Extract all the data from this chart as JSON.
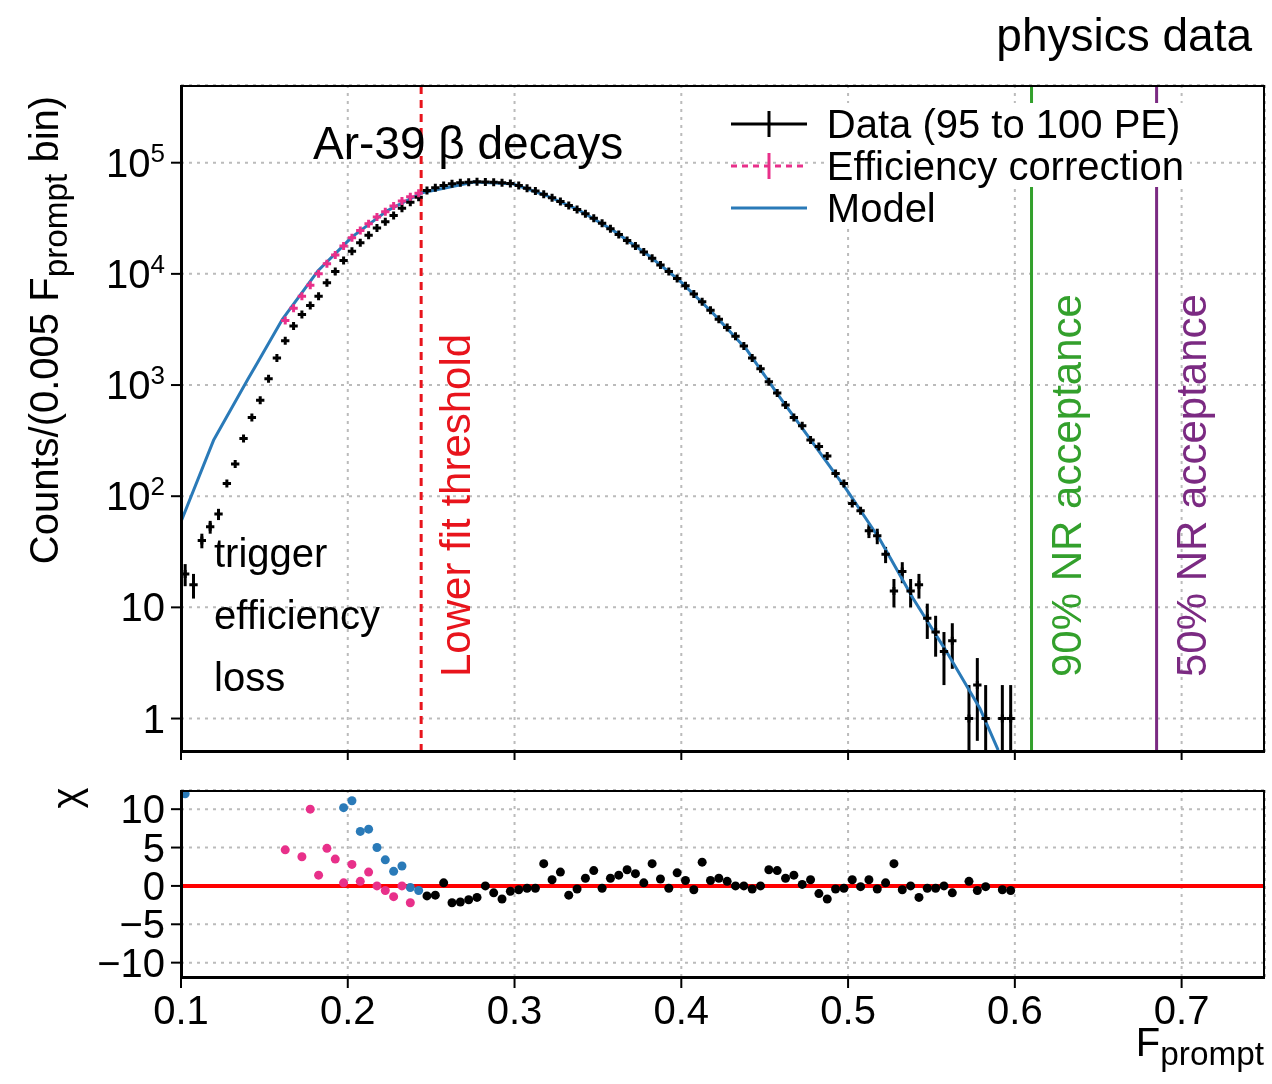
{
  "chart_data": [
    {
      "type": "scatter",
      "title": "physics data",
      "ylabel": "Counts/(0.005 F$_{prompt}$ bin)",
      "log": "y",
      "xlim": [
        0.1,
        0.75
      ],
      "ylim": [
        0.5,
        500000
      ],
      "xticks": [
        0.1,
        0.2,
        0.3,
        0.4,
        0.5,
        0.6,
        0.7
      ],
      "yticks": [
        1,
        10,
        {
          "value": 100,
          "label": "10$^{2}$"
        },
        {
          "value": 1000,
          "label": "10$^{3}$"
        },
        {
          "value": 10000,
          "label": "10$^{4}$"
        },
        {
          "value": 100000,
          "label": "10$^{5}$"
        }
      ],
      "tick_labels": "y",
      "grid": true,
      "legend": "top right",
      "x": [
        0.1025,
        0.1075,
        0.1125,
        0.1175,
        0.1225,
        0.1275,
        0.1325,
        0.1375,
        0.1425,
        0.1475,
        0.1525,
        0.1575,
        0.1625,
        0.1675,
        0.1725,
        0.1775,
        0.1825,
        0.1875,
        0.1925,
        0.1975,
        0.2025,
        0.2075,
        0.2125,
        0.2175,
        0.2225,
        0.2275,
        0.2325,
        0.2375,
        0.2425,
        0.2475,
        0.2525,
        0.2575,
        0.2625,
        0.2675,
        0.2725,
        0.2775,
        0.2825,
        0.2875,
        0.2925,
        0.2975,
        0.3025,
        0.3075,
        0.3125,
        0.3175,
        0.3225,
        0.3275,
        0.3325,
        0.3375,
        0.3425,
        0.3475,
        0.3525,
        0.3575,
        0.3625,
        0.3675,
        0.3725,
        0.3775,
        0.3825,
        0.3875,
        0.3925,
        0.3975,
        0.4025,
        0.4075,
        0.4125,
        0.4175,
        0.4225,
        0.4275,
        0.4325,
        0.4375,
        0.4425,
        0.4475,
        0.4525,
        0.4575,
        0.4625,
        0.4675,
        0.4725,
        0.4775,
        0.4825,
        0.4875,
        0.4925,
        0.4975,
        0.5025,
        0.5075,
        0.5125,
        0.5175,
        0.5225,
        0.5275,
        0.5325,
        0.5375,
        0.5425,
        0.5475,
        0.5525,
        0.5575,
        0.5625,
        0.5675,
        0.5725,
        0.5775,
        0.5825,
        0.5875,
        0.5925,
        0.5975
      ],
      "series": [
        {
          "name": "Data (95 to 100 PE)",
          "color": "#000000",
          "marker": "cross",
          "values": [
            20,
            16,
            40,
            53,
            69,
            130,
            195,
            330,
            510,
            730,
            1140,
            1750,
            2500,
            3400,
            4300,
            5200,
            6300,
            8300,
            10500,
            13200,
            16000,
            19100,
            22200,
            25800,
            29500,
            33500,
            39000,
            44000,
            49000,
            56200,
            59600,
            62400,
            64600,
            66100,
            66800,
            67300,
            67100,
            66800,
            66100,
            64900,
            62400,
            58900,
            55600,
            51900,
            48400,
            44700,
            41200,
            38000,
            34700,
            31600,
            28500,
            25400,
            22600,
            20000,
            17800,
            15700,
            13800,
            12000,
            10500,
            9100,
            7800,
            6600,
            5600,
            4700,
            3900,
            3300,
            2750,
            2250,
            1750,
            1400,
            1070,
            850,
            660,
            510,
            430,
            320,
            280,
            230,
            160,
            130,
            86,
            74,
            49,
            44,
            30,
            14,
            21,
            14,
            16,
            8,
            6,
            4,
            5,
            null,
            1,
            2,
            1,
            null,
            1,
            1
          ],
          "errors": [
            [
              15.5,
              24.5
            ],
            [
              12,
              20
            ],
            [
              34,
              46
            ],
            [
              46,
              60
            ],
            [
              61,
              77
            ],
            null,
            null,
            null,
            null,
            null,
            null,
            null,
            null,
            null,
            null,
            null,
            null,
            null,
            null,
            null,
            null,
            null,
            null,
            null,
            null,
            null,
            null,
            null,
            null,
            null,
            null,
            null,
            null,
            null,
            null,
            null,
            null,
            null,
            null,
            null,
            null,
            null,
            null,
            null,
            null,
            null,
            null,
            null,
            null,
            null,
            null,
            null,
            null,
            null,
            null,
            null,
            null,
            null,
            null,
            null,
            null,
            null,
            null,
            null,
            null,
            null,
            null,
            null,
            null,
            null,
            null,
            null,
            null,
            null,
            null,
            null,
            null,
            null,
            null,
            null,
            null,
            null,
            [
              42,
              56
            ],
            [
              37,
              51
            ],
            [
              25,
              35
            ],
            [
              10,
              18
            ],
            [
              16.5,
              25.5
            ],
            [
              10,
              18
            ],
            [
              12,
              20
            ],
            [
              5.2,
              10.8
            ],
            [
              3.6,
              8.4
            ],
            [
              2,
              6
            ],
            [
              2.8,
              7.2
            ],
            null,
            [
              0.5,
              2
            ],
            [
              0.63,
              3.5
            ],
            [
              0.5,
              2
            ],
            null,
            [
              0.5,
              2
            ],
            [
              0.5,
              2
            ]
          ]
        },
        {
          "name": "Efficiency correction",
          "color": "#e8308a",
          "marker": "cross",
          "x": [
            0.1625,
            0.1675,
            0.1725,
            0.1775,
            0.1825,
            0.1875,
            0.1925,
            0.1975,
            0.2025,
            0.2075,
            0.2125,
            0.2175,
            0.2225,
            0.2275,
            0.2325,
            0.2375,
            0.2425
          ],
          "values": [
            3800,
            4900,
            6300,
            7900,
            10000,
            12300,
            14800,
            17800,
            21100,
            24500,
            28200,
            32400,
            36300,
            40700,
            45200,
            49500,
            53100
          ]
        },
        {
          "name": "Model",
          "color": "#2a7ab8",
          "type": "line",
          "x": [
            0.1,
            0.1195,
            0.14,
            0.161,
            0.182,
            0.2026,
            0.2235,
            0.2445,
            0.2757,
            0.299,
            0.319,
            0.339,
            0.359,
            0.379,
            0.399,
            0.419,
            0.439,
            0.459,
            0.479,
            0.499,
            0.519,
            0.539,
            0.559,
            0.579,
            0.59
          ],
          "values": [
            59,
            318,
            1120,
            3940,
            10600,
            21500,
            36900,
            53700,
            67100,
            64600,
            50700,
            37200,
            24700,
            15200,
            8700,
            4420,
            2100,
            780,
            300,
            115,
            41,
            12,
            4,
            1.24,
            0.52
          ]
        }
      ],
      "ref_lines": [
        {
          "axis": "x",
          "value": 0.244,
          "label": "Lower fit threshold",
          "color": "#e8141c",
          "line_style": "dashed"
        },
        {
          "axis": "x",
          "value": 0.61,
          "label": "90% NR acceptance",
          "color": "#33a02c"
        },
        {
          "axis": "x",
          "value": 0.685,
          "label": "50% NR acceptance",
          "color": "#7b2a82"
        }
      ],
      "annotations": [
        "Ar-39 β decays",
        "trigger efficiency loss"
      ]
    },
    {
      "type": "scatter",
      "xlabel": "F$_{prompt}$",
      "ylabel": "χ",
      "xlim": [
        0.1,
        0.75
      ],
      "ylim": [
        -12,
        12.5
      ],
      "xticks": [
        0.1,
        0.2,
        0.3,
        0.4,
        0.5,
        0.6,
        0.7
      ],
      "yticks": [
        {
          "value": -10,
          "label": "−10"
        },
        {
          "value": -5,
          "label": "−5"
        },
        0,
        5,
        10
      ],
      "grid": true,
      "marker": "circle",
      "series": [
        {
          "color": "#2a7ab8",
          "x": [
            0.1025,
            0.1975,
            0.2025,
            0.2075,
            0.2125,
            0.2175,
            0.2225,
            0.2275,
            0.2325,
            0.2375,
            0.2425
          ],
          "values": [
            12,
            10.2,
            11.1,
            7.1,
            7.4,
            5,
            3.4,
            1.9,
            2.6,
            -0.2,
            -0.6
          ]
        },
        {
          "color": "#e8308a",
          "x": [
            0.1625,
            0.1725,
            0.1775,
            0.1825,
            0.1875,
            0.1925,
            0.1975,
            0.2025,
            0.2075,
            0.2125,
            0.2175,
            0.2225,
            0.2275,
            0.2325,
            0.2375
          ],
          "values": [
            4.7,
            3.8,
            10,
            1.4,
            4.9,
            3.5,
            0.4,
            2.8,
            0.6,
            1.8,
            0,
            -0.6,
            -1.4,
            0,
            -2.2
          ]
        },
        {
          "color": "#000000",
          "x": [
            0.2475,
            0.2525,
            0.2575,
            0.2625,
            0.2675,
            0.2725,
            0.2775,
            0.2825,
            0.2875,
            0.2925,
            0.2975,
            0.3025,
            0.3075,
            0.3125,
            0.3175,
            0.3225,
            0.3275,
            0.3325,
            0.3375,
            0.3425,
            0.3475,
            0.3525,
            0.3575,
            0.3625,
            0.3675,
            0.3725,
            0.3775,
            0.3825,
            0.3875,
            0.3925,
            0.3975,
            0.4025,
            0.4075,
            0.4125,
            0.4175,
            0.4225,
            0.4275,
            0.4325,
            0.4375,
            0.4425,
            0.4475,
            0.4525,
            0.4575,
            0.4625,
            0.4675,
            0.4725,
            0.4775,
            0.4825,
            0.4875,
            0.4925,
            0.4975,
            0.5025,
            0.5075,
            0.5125,
            0.5175,
            0.5225,
            0.5275,
            0.5325,
            0.5375,
            0.5425,
            0.5475,
            0.5525,
            0.5575,
            0.5625,
            0.5725,
            0.5775,
            0.5825,
            0.5925,
            0.5975
          ],
          "values": [
            -1.3,
            -1.2,
            0.4,
            -2.2,
            -2.1,
            -1.8,
            -1.5,
            0,
            -0.9,
            -1.7,
            -0.7,
            -0.5,
            -0.3,
            -0.3,
            2.9,
            0.8,
            1.8,
            -1.2,
            -0.4,
            1,
            2,
            -0.3,
            1,
            1.4,
            2.1,
            1.6,
            0.4,
            2.9,
            0.9,
            -0.3,
            1.7,
            0.7,
            -0.5,
            3.1,
            0.7,
            1,
            0.6,
            0,
            0,
            -0.4,
            0,
            2.1,
            2,
            1,
            1.4,
            0.2,
            0.8,
            -1,
            -1.7,
            -0.4,
            -0.3,
            0.8,
            -0.1,
            0.8,
            -0.4,
            0.4,
            2.9,
            -0.5,
            0,
            -1.5,
            -0.3,
            -0.3,
            0,
            -0.9,
            0.6,
            -0.6,
            -0.1,
            -0.5,
            -0.6
          ]
        }
      ],
      "ref_lines": [
        {
          "axis": "y",
          "value": 0,
          "color": "#ff0000"
        }
      ]
    }
  ]
}
